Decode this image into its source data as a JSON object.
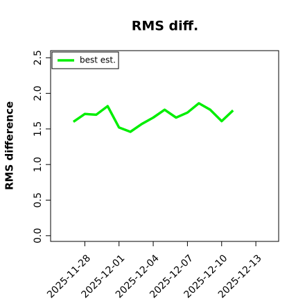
{
  "chart_data": {
    "type": "line",
    "title": "RMS diff.",
    "y_label": "RMS difference",
    "x": [
      "2025-11-27",
      "2025-11-28",
      "2025-11-29",
      "2025-11-30",
      "2025-12-01",
      "2025-12-02",
      "2025-12-03",
      "2025-12-04",
      "2025-12-05",
      "2025-12-06",
      "2025-12-07",
      "2025-12-08",
      "2025-12-09",
      "2025-12-10",
      "2025-12-11"
    ],
    "series": [
      {
        "name": "best est.",
        "color": "#00ee00",
        "values": [
          1.6,
          1.71,
          1.7,
          1.82,
          1.52,
          1.46,
          1.57,
          1.66,
          1.77,
          1.66,
          1.73,
          1.86,
          1.77,
          1.61,
          1.76
        ]
      }
    ],
    "xlim": [
      "2025-11-25",
      "2025-12-15"
    ],
    "xticks": [
      "2025-11-28",
      "2025-12-01",
      "2025-12-04",
      "2025-12-07",
      "2025-12-10",
      "2025-12-13"
    ],
    "ylim": [
      -0.08,
      2.6
    ],
    "yticks": [
      {
        "value": 0,
        "label": "0.0"
      },
      0.5,
      {
        "value": 1,
        "label": "1.0"
      },
      1.5,
      {
        "value": 2,
        "label": "2.0"
      },
      2.5
    ],
    "legend": "upper left",
    "grid": false
  }
}
